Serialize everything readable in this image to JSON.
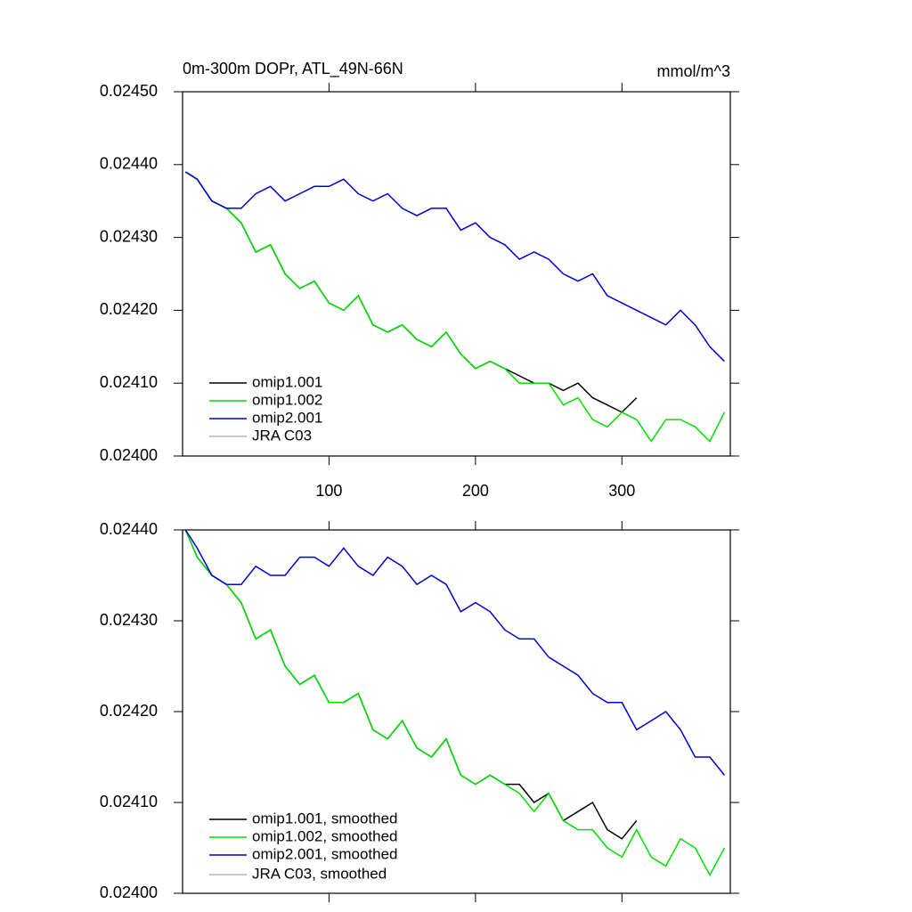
{
  "chart_data": [
    {
      "type": "line",
      "title": "0m-300m DOPr, ATL_49N-66N",
      "units": "mmol/m^3",
      "x": [
        2,
        10,
        20,
        30,
        40,
        50,
        60,
        70,
        80,
        90,
        100,
        110,
        120,
        130,
        140,
        150,
        160,
        170,
        180,
        190,
        200,
        210,
        220,
        230,
        240,
        250,
        260,
        270,
        280,
        290,
        300,
        310,
        320,
        330,
        340,
        350,
        360,
        370
      ],
      "series": [
        {
          "name": "omip1.001",
          "color": "#000000",
          "values": [
            0.02439,
            0.02438,
            0.02435,
            0.02434,
            0.02432,
            0.02428,
            0.02429,
            0.02425,
            0.02423,
            0.02424,
            0.02421,
            0.0242,
            0.02422,
            0.02418,
            0.02417,
            0.02418,
            0.02416,
            0.02415,
            0.02417,
            0.02414,
            0.02412,
            0.02413,
            0.02412,
            0.02411,
            0.0241,
            0.0241,
            0.02409,
            0.0241,
            0.02408,
            0.02407,
            0.02406,
            0.02408,
            null,
            null,
            null,
            null,
            null,
            null
          ]
        },
        {
          "name": "omip1.002",
          "color": "#00e000",
          "values": [
            0.02439,
            0.02438,
            0.02435,
            0.02434,
            0.02432,
            0.02428,
            0.02429,
            0.02425,
            0.02423,
            0.02424,
            0.02421,
            0.0242,
            0.02422,
            0.02418,
            0.02417,
            0.02418,
            0.02416,
            0.02415,
            0.02417,
            0.02414,
            0.02412,
            0.02413,
            0.02412,
            0.0241,
            0.0241,
            0.0241,
            0.02407,
            0.02408,
            0.02405,
            0.02404,
            0.02406,
            0.02405,
            0.02402,
            0.02405,
            0.02405,
            0.02404,
            0.02402,
            0.02406
          ]
        },
        {
          "name": "omip2.001",
          "color": "#0000d0",
          "values": [
            0.02439,
            0.02438,
            0.02435,
            0.02434,
            0.02434,
            0.02436,
            0.02437,
            0.02435,
            0.02436,
            0.02437,
            0.02437,
            0.02438,
            0.02436,
            0.02435,
            0.02436,
            0.02434,
            0.02433,
            0.02434,
            0.02434,
            0.02431,
            0.02432,
            0.0243,
            0.02429,
            0.02427,
            0.02428,
            0.02427,
            0.02425,
            0.02424,
            0.02425,
            0.02422,
            0.02421,
            0.0242,
            0.02419,
            0.02418,
            0.0242,
            0.02418,
            0.02415,
            0.02413
          ]
        },
        {
          "name": "JRA C03",
          "color": "#b8b8b8",
          "values": [
            null,
            null,
            null,
            null,
            null,
            null,
            null,
            null,
            null,
            null,
            null,
            null,
            null,
            null,
            null,
            null,
            null,
            null,
            null,
            null,
            null,
            null,
            null,
            null,
            null,
            null,
            null,
            null,
            null,
            null,
            null,
            null,
            null,
            null,
            null,
            null,
            null,
            null
          ]
        }
      ],
      "xlim": [
        0,
        374
      ],
      "xticks": [
        100,
        200,
        300
      ],
      "ylim": [
        0.024,
        0.0245
      ],
      "yticks": [
        {
          "value": 0.024,
          "label": "0.02400"
        },
        {
          "value": 0.0241,
          "label": "0.02410"
        },
        {
          "value": 0.0242,
          "label": "0.02420"
        },
        {
          "value": 0.0243,
          "label": "0.02430"
        },
        {
          "value": 0.0244,
          "label": "0.02440"
        },
        {
          "value": 0.0245,
          "label": "0.02450"
        }
      ],
      "legend": "lower left"
    },
    {
      "type": "line",
      "x": [
        2,
        10,
        20,
        30,
        40,
        50,
        60,
        70,
        80,
        90,
        100,
        110,
        120,
        130,
        140,
        150,
        160,
        170,
        180,
        190,
        200,
        210,
        220,
        230,
        240,
        250,
        260,
        270,
        280,
        290,
        300,
        310,
        320,
        330,
        340,
        350,
        360,
        370
      ],
      "series": [
        {
          "name": "omip1.001, smoothed",
          "color": "#000000",
          "values": [
            0.0244,
            0.02437,
            0.02435,
            0.02434,
            0.02432,
            0.02428,
            0.02429,
            0.02425,
            0.02423,
            0.02424,
            0.02421,
            0.02421,
            0.02422,
            0.02418,
            0.02417,
            0.02419,
            0.02416,
            0.02415,
            0.02417,
            0.02413,
            0.02412,
            0.02413,
            0.02412,
            0.02412,
            0.0241,
            0.02411,
            0.02408,
            0.02409,
            0.0241,
            0.02407,
            0.02406,
            0.02408,
            null,
            null,
            null,
            null,
            null,
            null
          ]
        },
        {
          "name": "omip1.002, smoothed",
          "color": "#00e000",
          "values": [
            0.0244,
            0.02437,
            0.02435,
            0.02434,
            0.02432,
            0.02428,
            0.02429,
            0.02425,
            0.02423,
            0.02424,
            0.02421,
            0.02421,
            0.02422,
            0.02418,
            0.02417,
            0.02419,
            0.02416,
            0.02415,
            0.02417,
            0.02413,
            0.02412,
            0.02413,
            0.02412,
            0.02411,
            0.02409,
            0.02411,
            0.02408,
            0.02407,
            0.02407,
            0.02405,
            0.02404,
            0.02407,
            0.02404,
            0.02403,
            0.02406,
            0.02405,
            0.02402,
            0.02405
          ]
        },
        {
          "name": "omip2.001, smoothed",
          "color": "#0000d0",
          "values": [
            0.0244,
            0.02438,
            0.02435,
            0.02434,
            0.02434,
            0.02436,
            0.02435,
            0.02435,
            0.02437,
            0.02437,
            0.02436,
            0.02438,
            0.02436,
            0.02435,
            0.02437,
            0.02436,
            0.02434,
            0.02435,
            0.02434,
            0.02431,
            0.02432,
            0.02431,
            0.02429,
            0.02428,
            0.02428,
            0.02426,
            0.02425,
            0.02424,
            0.02422,
            0.02421,
            0.02421,
            0.02418,
            0.02419,
            0.0242,
            0.02418,
            0.02415,
            0.02415,
            0.02413
          ]
        },
        {
          "name": "JRA C03, smoothed",
          "color": "#b8b8b8",
          "values": [
            null,
            null,
            null,
            null,
            null,
            null,
            null,
            null,
            null,
            null,
            null,
            null,
            null,
            null,
            null,
            null,
            null,
            null,
            null,
            null,
            null,
            null,
            null,
            null,
            null,
            null,
            null,
            null,
            null,
            null,
            null,
            null,
            null,
            null,
            null,
            null,
            null,
            null
          ]
        }
      ],
      "xlim": [
        0,
        374
      ],
      "xticks": [
        100,
        200,
        300
      ],
      "xtick_labels": false,
      "ylim": [
        0.024,
        0.0244
      ],
      "yticks": [
        {
          "value": 0.024,
          "label": "0.02400"
        },
        {
          "value": 0.0241,
          "label": "0.02410"
        },
        {
          "value": 0.0242,
          "label": "0.02420"
        },
        {
          "value": 0.0243,
          "label": "0.02430"
        },
        {
          "value": 0.0244,
          "label": "0.02440"
        }
      ],
      "legend": "lower left"
    }
  ]
}
